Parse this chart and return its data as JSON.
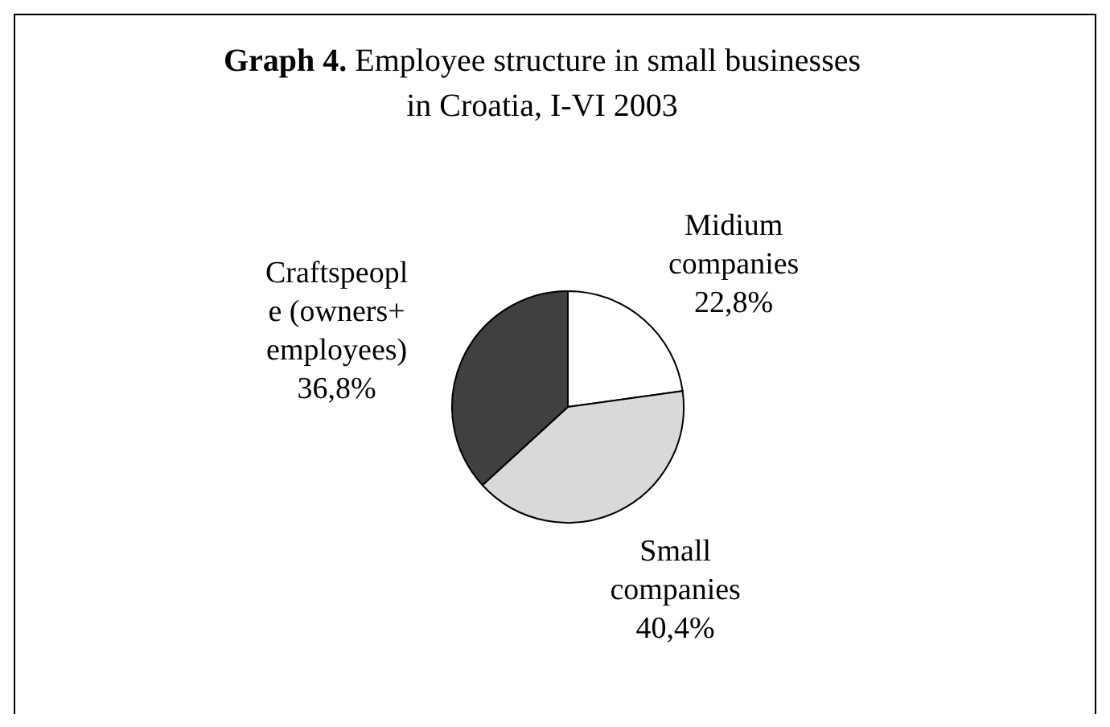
{
  "chart_data": {
    "type": "pie",
    "title": "Graph 4. Employee structure in small businesses\nin Croatia, I-VI 2003",
    "categories": [
      "Midium\ncompanies",
      "Small\ncompanies",
      "Craftspeopl\ne (owners+\nemployees)"
    ],
    "values": [
      22.8,
      40.4,
      36.8
    ],
    "colors": [
      "#ffffff",
      "#d9d9d9",
      "#404040"
    ],
    "value_labels": [
      "22,8%",
      "40,4%",
      "36,8%"
    ]
  }
}
